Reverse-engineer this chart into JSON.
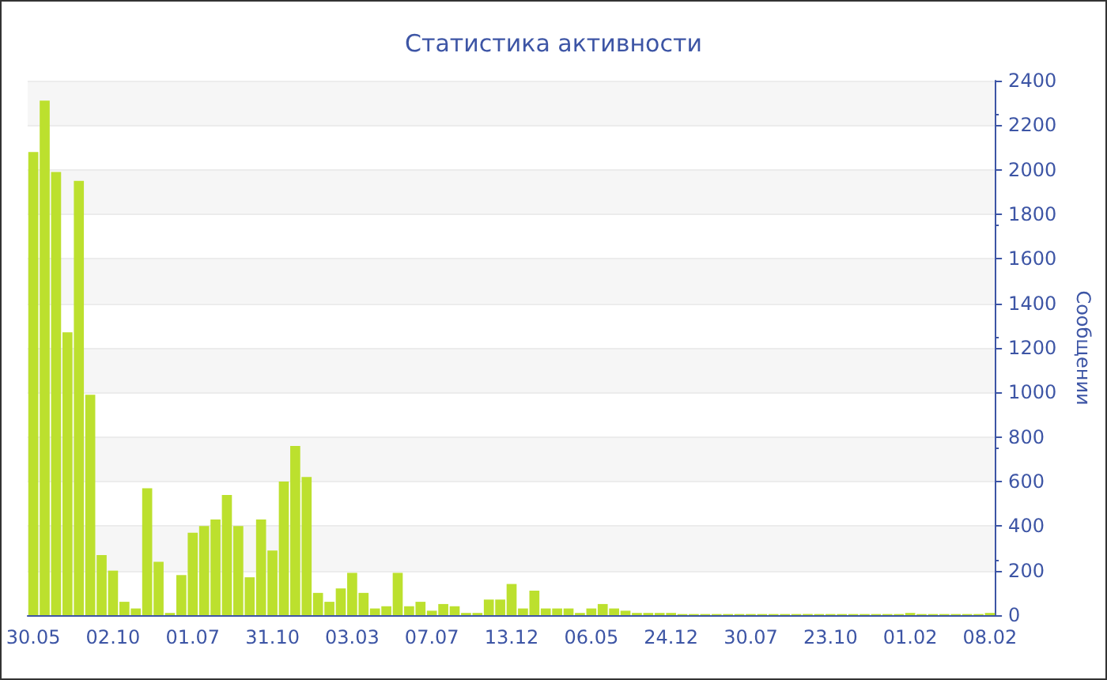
{
  "chart_data": {
    "type": "bar",
    "title": "Статистика активности",
    "ylabel": "Сообщении",
    "categories": [
      "30.05",
      null,
      null,
      null,
      null,
      null,
      null,
      "02.10",
      null,
      null,
      null,
      null,
      null,
      null,
      "01.07",
      null,
      null,
      null,
      null,
      null,
      null,
      "31.10",
      null,
      null,
      null,
      null,
      null,
      null,
      "03.03",
      null,
      null,
      null,
      null,
      null,
      null,
      "07.07",
      null,
      null,
      null,
      null,
      null,
      null,
      "13.12",
      null,
      null,
      null,
      null,
      null,
      null,
      "06.05",
      null,
      null,
      null,
      null,
      null,
      null,
      "24.12",
      null,
      null,
      null,
      null,
      null,
      null,
      "30.07",
      null,
      null,
      null,
      null,
      null,
      null,
      "23.10",
      null,
      null,
      null,
      null,
      null,
      null,
      "01.02",
      null,
      null,
      null,
      null,
      null,
      null,
      "08.02"
    ],
    "values": [
      2080,
      2310,
      1990,
      1270,
      1950,
      990,
      270,
      200,
      60,
      30,
      570,
      240,
      10,
      180,
      370,
      400,
      430,
      540,
      400,
      170,
      430,
      290,
      600,
      760,
      620,
      100,
      60,
      120,
      190,
      100,
      30,
      40,
      190,
      40,
      60,
      20,
      50,
      40,
      10,
      10,
      70,
      70,
      140,
      30,
      110,
      30,
      30,
      30,
      10,
      30,
      50,
      30,
      20,
      10,
      10,
      10,
      10,
      5,
      5,
      5,
      5,
      5,
      5,
      5,
      5,
      5,
      5,
      5,
      5,
      5,
      5,
      5,
      5,
      5,
      5,
      5,
      5,
      10,
      5,
      5,
      5,
      5,
      5,
      5,
      10
    ],
    "color": "#bce02e",
    "ylim": [
      0,
      2400
    ],
    "yticks": [
      0,
      200,
      400,
      600,
      800,
      1000,
      1200,
      1400,
      1600,
      1800,
      2000,
      2200,
      2400
    ],
    "grid": "y"
  }
}
